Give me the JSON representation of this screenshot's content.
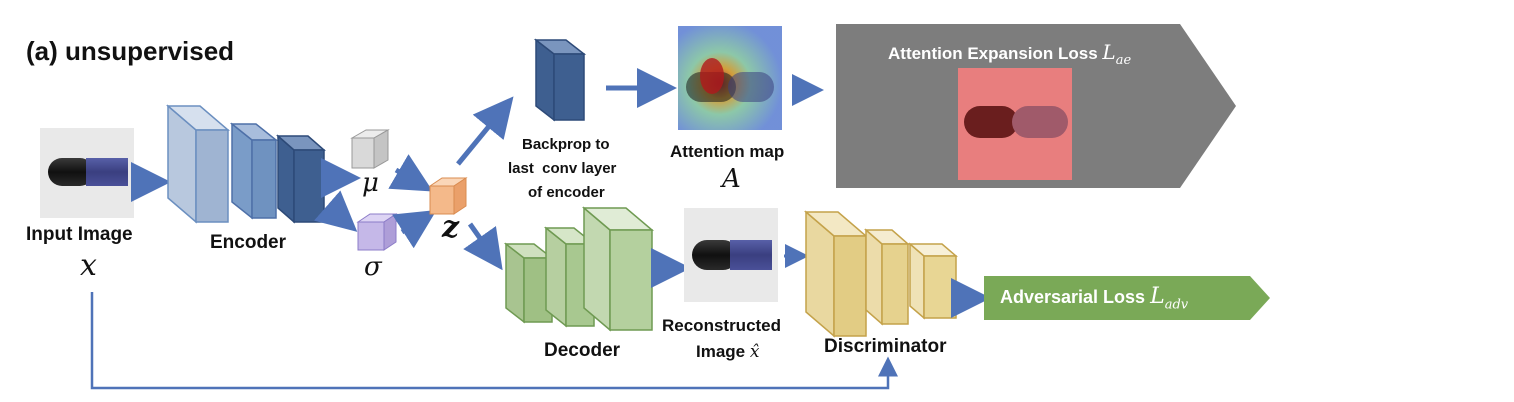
{
  "panel_title": "(a) unsupervised",
  "input": {
    "label": "Input Image",
    "symbol": "x"
  },
  "encoder": {
    "label": "Encoder"
  },
  "latent": {
    "mu": "μ",
    "sigma": "σ",
    "z": "z"
  },
  "backprop": {
    "lines": [
      "Backprop to",
      "last  conv layer",
      "of encoder"
    ]
  },
  "attention_map": {
    "label": "Attention map",
    "symbol": "A"
  },
  "attention_loss": {
    "label": "Attention Expansion Loss",
    "symbol_base": "L",
    "symbol_sub": "ae",
    "box_color": "#7d7d7d"
  },
  "decoder": {
    "label": "Decoder"
  },
  "reconstructed": {
    "line1": "Reconstructed",
    "line2": "Image",
    "symbol": "x̂"
  },
  "discriminator": {
    "label": "Discriminator"
  },
  "adversarial_loss": {
    "label": "Adversarial Loss",
    "symbol_base": "L",
    "symbol_sub": "adv",
    "box_color": "#7aa957"
  },
  "pill_text": "500",
  "colors": {
    "arrow": "#4f73b8",
    "encoder": "#6b8fc0",
    "decoder": "#8fb278",
    "discriminator": "#d8bf72",
    "z_cube": "#f4b98a",
    "mu_cube": "#d9d9d9",
    "sigma_cube": "#c5b8e8"
  }
}
